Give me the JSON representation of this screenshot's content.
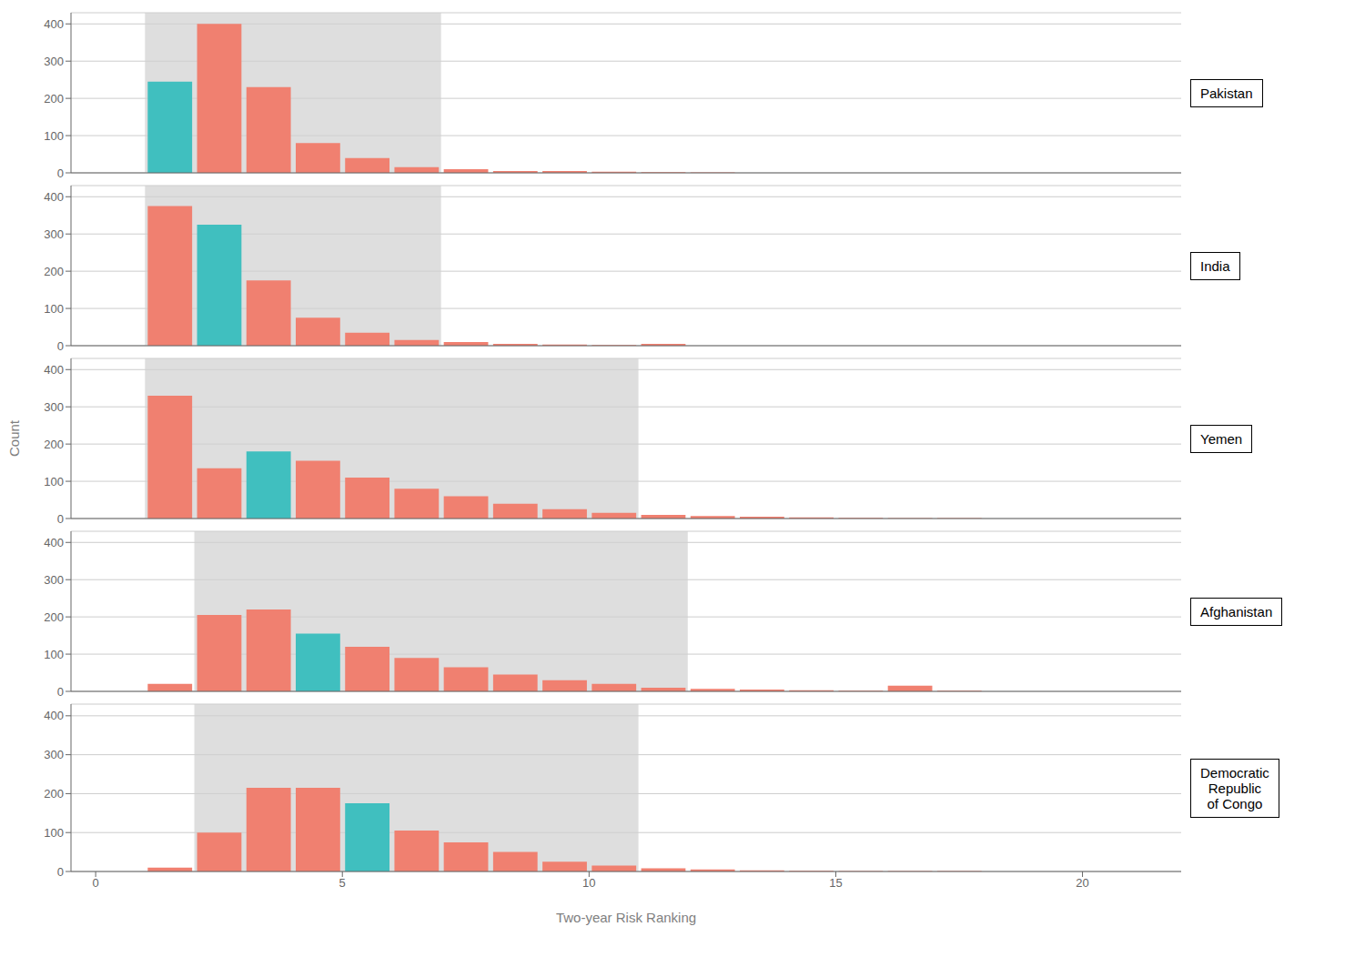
{
  "chart_data": [
    {
      "type": "histogram",
      "title": "Pakistan",
      "bins": [
        1,
        2,
        3,
        4,
        5,
        6,
        7,
        8,
        9,
        10,
        11,
        12,
        13
      ],
      "values": [
        245,
        400,
        230,
        80,
        40,
        15,
        10,
        5,
        5,
        3,
        2,
        1
      ],
      "colors": [
        "#40BFBF",
        "#F08070",
        "#F08070",
        "#F08070",
        "#F08070",
        "#F08070",
        "#F08070",
        "#F08070",
        "#F08070",
        "#F08070",
        "#F08070",
        "#F08070"
      ],
      "shaded_range": {
        "from": 1.0,
        "to": 7.0,
        "color": "#D0D0D0"
      },
      "xlim": [
        -0.5,
        22
      ],
      "ylim": [
        0,
        430
      ],
      "xticks": [
        0,
        5,
        10,
        15,
        20
      ],
      "yticks": [
        0,
        100,
        200,
        300,
        400
      ],
      "grid": true,
      "tick_labels": "y"
    },
    {
      "type": "histogram",
      "title": "India",
      "bins": [
        1,
        2,
        3,
        4,
        5,
        6,
        7,
        8,
        9,
        10,
        11,
        12
      ],
      "values": [
        375,
        325,
        175,
        75,
        35,
        15,
        10,
        5,
        3,
        2,
        5
      ],
      "colors": [
        "#F08070",
        "#40BFBF",
        "#F08070",
        "#F08070",
        "#F08070",
        "#F08070",
        "#F08070",
        "#F08070",
        "#F08070",
        "#F08070",
        "#F08070"
      ],
      "shaded_range": {
        "from": 1.0,
        "to": 7.0,
        "color": "#D0D0D0"
      },
      "xlim": [
        -0.5,
        22
      ],
      "ylim": [
        0,
        430
      ],
      "xticks": [
        0,
        5,
        10,
        15,
        20
      ],
      "yticks": [
        0,
        100,
        200,
        300,
        400
      ],
      "grid": true,
      "tick_labels": "y"
    },
    {
      "type": "histogram",
      "title": "Yemen",
      "ylabel": "Count",
      "bins": [
        1,
        2,
        3,
        4,
        5,
        6,
        7,
        8,
        9,
        10,
        11,
        12,
        13,
        14,
        15,
        16,
        17,
        18
      ],
      "values": [
        330,
        135,
        180,
        155,
        110,
        80,
        60,
        40,
        25,
        15,
        10,
        7,
        5,
        3,
        2,
        1,
        1
      ],
      "colors": [
        "#F08070",
        "#F08070",
        "#40BFBF",
        "#F08070",
        "#F08070",
        "#F08070",
        "#F08070",
        "#F08070",
        "#F08070",
        "#F08070",
        "#F08070",
        "#F08070",
        "#F08070",
        "#F08070",
        "#F08070",
        "#F08070",
        "#F08070"
      ],
      "shaded_range": {
        "from": 1.0,
        "to": 11.0,
        "color": "#D0D0D0"
      },
      "xlim": [
        -0.5,
        22
      ],
      "ylim": [
        0,
        430
      ],
      "xticks": [
        0,
        5,
        10,
        15,
        20
      ],
      "yticks": [
        0,
        100,
        200,
        300,
        400
      ],
      "grid": true,
      "tick_labels": "y"
    },
    {
      "type": "histogram",
      "title": "Afghanistan",
      "bins": [
        1,
        2,
        3,
        4,
        5,
        6,
        7,
        8,
        9,
        10,
        11,
        12,
        13,
        14,
        15,
        16,
        17,
        18
      ],
      "values": [
        20,
        205,
        220,
        155,
        120,
        90,
        65,
        45,
        30,
        20,
        10,
        7,
        5,
        3,
        2,
        15,
        2
      ],
      "colors": [
        "#F08070",
        "#F08070",
        "#F08070",
        "#40BFBF",
        "#F08070",
        "#F08070",
        "#F08070",
        "#F08070",
        "#F08070",
        "#F08070",
        "#F08070",
        "#F08070",
        "#F08070",
        "#F08070",
        "#F08070",
        "#F08070",
        "#F08070"
      ],
      "shaded_range": {
        "from": 2.0,
        "to": 12.0,
        "color": "#D0D0D0"
      },
      "xlim": [
        -0.5,
        22
      ],
      "ylim": [
        0,
        430
      ],
      "xticks": [
        0,
        5,
        10,
        15,
        20
      ],
      "yticks": [
        0,
        100,
        200,
        300,
        400
      ],
      "grid": true,
      "tick_labels": "y"
    },
    {
      "type": "histogram",
      "title": "Democratic\nRepublic\nof Congo",
      "xlabel": "Two-year Risk Ranking",
      "bins": [
        1,
        2,
        3,
        4,
        5,
        6,
        7,
        8,
        9,
        10,
        11,
        12,
        13,
        14,
        15,
        16,
        17,
        18
      ],
      "values": [
        10,
        100,
        215,
        215,
        175,
        105,
        75,
        50,
        25,
        15,
        8,
        5,
        3,
        2,
        1,
        1,
        1
      ],
      "colors": [
        "#F08070",
        "#F08070",
        "#F08070",
        "#F08070",
        "#40BFBF",
        "#F08070",
        "#F08070",
        "#F08070",
        "#F08070",
        "#F08070",
        "#F08070",
        "#F08070",
        "#F08070",
        "#F08070",
        "#F08070",
        "#F08070",
        "#F08070"
      ],
      "shaded_range": {
        "from": 2.0,
        "to": 11.0,
        "color": "#D0D0D0"
      },
      "xlim": [
        -0.5,
        22
      ],
      "ylim": [
        0,
        430
      ],
      "xticks": [
        0,
        5,
        10,
        15,
        20
      ],
      "yticks": [
        0,
        100,
        200,
        300,
        400
      ],
      "grid": true
    }
  ]
}
